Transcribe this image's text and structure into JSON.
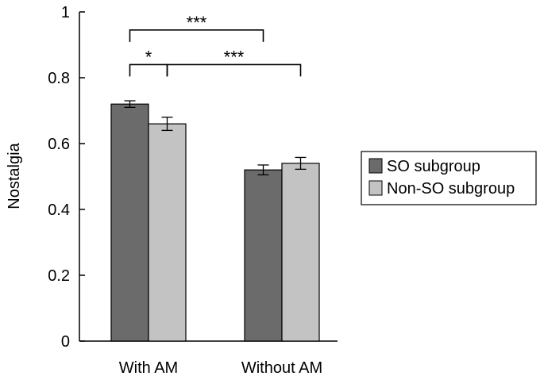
{
  "chart_data": {
    "type": "bar",
    "title": "",
    "xlabel": "",
    "ylabel": "Nostalgia",
    "ylim": [
      0,
      1
    ],
    "yticks": [
      "0",
      "0.2",
      "0.4",
      "0.6",
      "0.8",
      "1"
    ],
    "categories": [
      "With AM",
      "Without AM"
    ],
    "series": [
      {
        "name": "SO subgroup",
        "values": [
          0.72,
          0.52
        ],
        "errors": [
          0.01,
          0.015
        ],
        "color": "#6b6b6b"
      },
      {
        "name": "Non-SO subgroup",
        "values": [
          0.66,
          0.54
        ],
        "errors": [
          0.02,
          0.018
        ],
        "color": "#c3c3c3"
      }
    ],
    "legend_position": "right",
    "grid": false,
    "annotations": [
      {
        "label": "***",
        "from": {
          "category": 0,
          "series": 0
        },
        "to": {
          "category": 1,
          "series": 0
        },
        "level": 0.945
      },
      {
        "label": "*",
        "from": {
          "category": 0,
          "series": 0
        },
        "to": {
          "category": 0,
          "series": 1
        },
        "level": 0.84
      },
      {
        "label": "***",
        "from": {
          "category": 0,
          "series": 1
        },
        "to": {
          "category": 1,
          "series": 1
        },
        "level": 0.84
      }
    ]
  }
}
